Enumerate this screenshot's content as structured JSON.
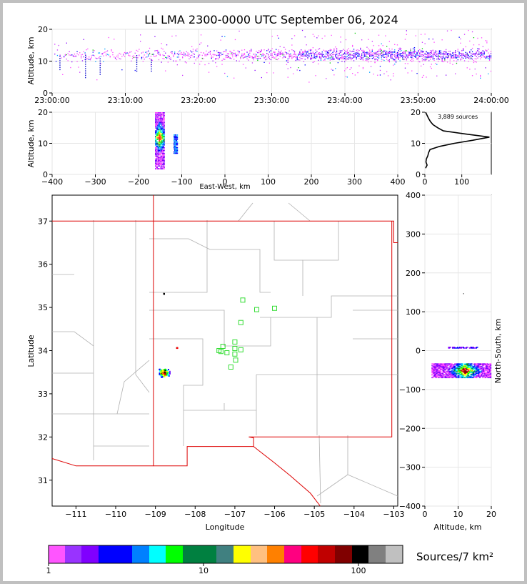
{
  "title": "LL LMA 2300-0000 UTC September 06, 2024",
  "sources_label": "3,889 sources",
  "colorbar": {
    "label": "Sources/7 km²",
    "ticks": [
      "1",
      "10",
      "100"
    ],
    "colors": [
      "#ff55ff",
      "#9933ff",
      "#8000ff",
      "#0000ff",
      "#0000ff",
      "#0080ff",
      "#00ffff",
      "#00ff00",
      "#008040",
      "#008040",
      "#408080",
      "#ffff00",
      "#ffc080",
      "#ff8000",
      "#ff0080",
      "#ff0000",
      "#c00000",
      "#800000",
      "#000000",
      "#808080",
      "#c0c0c0",
      "#ffffff"
    ]
  },
  "chart_data": [
    {
      "id": "time-altitude",
      "type": "scatter",
      "xlabel": "",
      "ylabel": "Altitude, km",
      "x_ticks": [
        "23:00:00",
        "23:10:00",
        "23:20:00",
        "23:30:00",
        "23:40:00",
        "23:50:00",
        "24:00:00"
      ],
      "xlim_minutes": [
        0,
        60
      ],
      "ylim": [
        0,
        20
      ],
      "y_ticks": [
        0,
        10,
        20
      ],
      "grid": true,
      "activity_profile": [
        {
          "t": 0,
          "density": 0.15
        },
        {
          "t": 5,
          "density": 0.2
        },
        {
          "t": 10,
          "density": 0.25
        },
        {
          "t": 15,
          "density": 0.3
        },
        {
          "t": 20,
          "density": 0.35
        },
        {
          "t": 25,
          "density": 0.45
        },
        {
          "t": 30,
          "density": 0.6
        },
        {
          "t": 35,
          "density": 0.75
        },
        {
          "t": 40,
          "density": 0.9
        },
        {
          "t": 45,
          "density": 0.95
        },
        {
          "t": 50,
          "density": 1.0
        },
        {
          "t": 55,
          "density": 0.85
        },
        {
          "t": 60,
          "density": 0.7
        }
      ],
      "altitude_core_km": [
        9,
        15
      ]
    },
    {
      "id": "eastwest-altitude",
      "type": "scatter",
      "xlabel": "East-West, km",
      "ylabel": "Altitude, km",
      "xlim": [
        -400,
        400
      ],
      "x_ticks": [
        -400,
        -300,
        -200,
        -100,
        0,
        100,
        200,
        300,
        400
      ],
      "ylim": [
        0,
        20
      ],
      "y_ticks": [
        0,
        10,
        20
      ],
      "grid": true,
      "clusters": [
        {
          "x_center": -152,
          "x_halfwidth": 10,
          "alt_min": 2,
          "alt_max": 20
        },
        {
          "x_center": -115,
          "x_halfwidth": 4,
          "alt_min": 7,
          "alt_max": 13
        }
      ]
    },
    {
      "id": "altitude-histogram",
      "type": "line",
      "xlim": [
        0,
        180
      ],
      "x_ticks": [
        0,
        100
      ],
      "ylim": [
        0,
        20
      ],
      "y_ticks": [
        0,
        10,
        20
      ],
      "grid": true,
      "profile": [
        {
          "alt": 2,
          "count": 2
        },
        {
          "alt": 3,
          "count": 6
        },
        {
          "alt": 4,
          "count": 3
        },
        {
          "alt": 5,
          "count": 4
        },
        {
          "alt": 6,
          "count": 8
        },
        {
          "alt": 7,
          "count": 10
        },
        {
          "alt": 8,
          "count": 14
        },
        {
          "alt": 9,
          "count": 40
        },
        {
          "alt": 10,
          "count": 80
        },
        {
          "alt": 11,
          "count": 130
        },
        {
          "alt": 12,
          "count": 175
        },
        {
          "alt": 13,
          "count": 110
        },
        {
          "alt": 14,
          "count": 50
        },
        {
          "alt": 15,
          "count": 35
        },
        {
          "alt": 16,
          "count": 22
        },
        {
          "alt": 17,
          "count": 15
        },
        {
          "alt": 18,
          "count": 10
        },
        {
          "alt": 19,
          "count": 6
        },
        {
          "alt": 20,
          "count": 2
        }
      ]
    },
    {
      "id": "plan-view-map",
      "type": "scatter",
      "xlabel": "Longitude",
      "ylabel": "Latitude",
      "xlim": [
        -111.6,
        -102.9
      ],
      "ylim": [
        30.4,
        37.6
      ],
      "x_ticks": [
        -111,
        -110,
        -109,
        -108,
        -107,
        -106,
        -105,
        -104,
        -103
      ],
      "y_ticks": [
        31,
        32,
        33,
        34,
        35,
        36,
        37
      ],
      "stations": [
        {
          "lon": -106.8,
          "lat": 35.17
        },
        {
          "lon": -106.45,
          "lat": 34.95
        },
        {
          "lon": -106.0,
          "lat": 34.98
        },
        {
          "lon": -106.85,
          "lat": 34.65
        },
        {
          "lon": -107.0,
          "lat": 34.2
        },
        {
          "lon": -107.3,
          "lat": 34.1
        },
        {
          "lon": -107.4,
          "lat": 34.0
        },
        {
          "lon": -107.2,
          "lat": 33.95
        },
        {
          "lon": -107.0,
          "lat": 34.05
        },
        {
          "lon": -106.85,
          "lat": 34.02
        },
        {
          "lon": -107.0,
          "lat": 33.92
        },
        {
          "lon": -106.98,
          "lat": 33.78
        },
        {
          "lon": -107.1,
          "lat": 33.62
        },
        {
          "lon": -107.35,
          "lat": 33.98
        }
      ],
      "source_clusters": [
        {
          "lon": -108.8,
          "lat": 33.5,
          "spread": 0.12
        },
        {
          "lon": -108.47,
          "lat": 34.08,
          "spread": 0.02
        },
        {
          "lon": -108.8,
          "lat": 35.33,
          "spread": 0.01
        }
      ]
    },
    {
      "id": "altitude-northsouth",
      "type": "scatter",
      "xlabel": "Altitude, km",
      "ylabel": "North-South, km",
      "xlim": [
        0,
        20
      ],
      "x_ticks": [
        0,
        10,
        20
      ],
      "ylim": [
        -400,
        400
      ],
      "y_ticks": [
        -400,
        -300,
        -200,
        -100,
        0,
        100,
        200,
        300,
        400
      ],
      "grid": true,
      "clusters": [
        {
          "ns_center": -50,
          "ns_halfwidth": 18,
          "alt_min": 2,
          "alt_max": 20
        },
        {
          "ns_center": 10,
          "ns_halfwidth": 2,
          "alt_min": 7,
          "alt_max": 16
        }
      ]
    }
  ]
}
